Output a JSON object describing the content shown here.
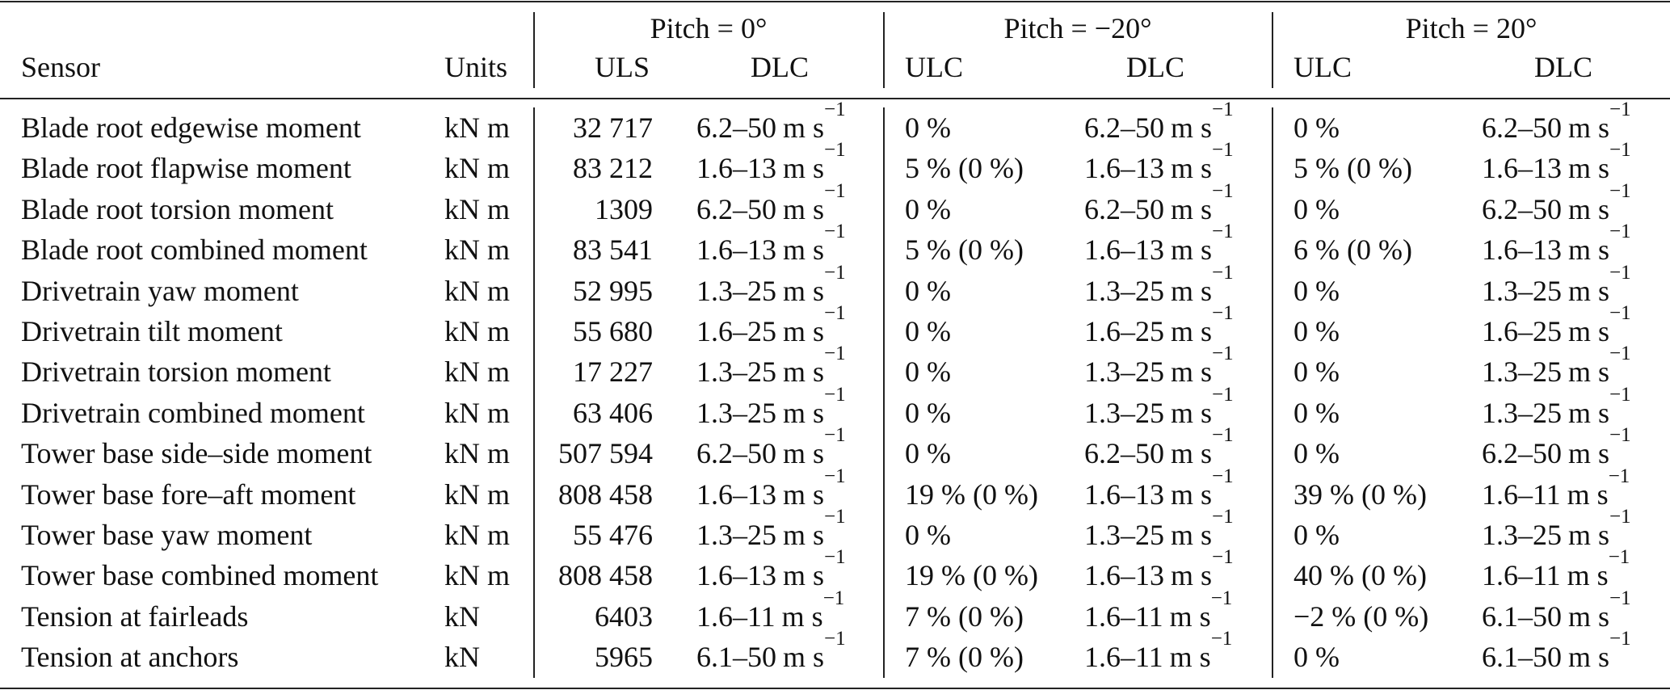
{
  "header": {
    "group_labels": [
      "Pitch = 0°",
      "Pitch = −20°",
      "Pitch = 20°"
    ],
    "columns": [
      "Sensor",
      "Units",
      "ULS",
      "DLC",
      "ULC",
      "DLC",
      "ULC",
      "DLC"
    ]
  },
  "rows": [
    {
      "sensor": "Blade root edgewise moment",
      "units": "kN m",
      "uls": "32 717",
      "dlc0": "6.2–50",
      "ulc_m20": "0 %",
      "dlc_m20": "6.2–50",
      "ulc_p20": "0 %",
      "dlc_p20": "6.2–50"
    },
    {
      "sensor": "Blade root flapwise moment",
      "units": "kN m",
      "uls": "83 212",
      "dlc0": "1.6–13",
      "ulc_m20": "5 % (0 %)",
      "dlc_m20": "1.6–13",
      "ulc_p20": "5 % (0 %)",
      "dlc_p20": "1.6–13"
    },
    {
      "sensor": "Blade root torsion moment",
      "units": "kN m",
      "uls": "1309",
      "dlc0": "6.2–50",
      "ulc_m20": "0 %",
      "dlc_m20": "6.2–50",
      "ulc_p20": "0 %",
      "dlc_p20": "6.2–50"
    },
    {
      "sensor": "Blade root combined moment",
      "units": "kN m",
      "uls": "83 541",
      "dlc0": "1.6–13",
      "ulc_m20": "5 % (0 %)",
      "dlc_m20": "1.6–13",
      "ulc_p20": "6 % (0 %)",
      "dlc_p20": "1.6–13"
    },
    {
      "sensor": "Drivetrain yaw moment",
      "units": "kN m",
      "uls": "52 995",
      "dlc0": "1.3–25",
      "ulc_m20": "0 %",
      "dlc_m20": "1.3–25",
      "ulc_p20": "0 %",
      "dlc_p20": "1.3–25"
    },
    {
      "sensor": "Drivetrain tilt moment",
      "units": "kN m",
      "uls": "55 680",
      "dlc0": "1.6–25",
      "ulc_m20": "0 %",
      "dlc_m20": "1.6–25",
      "ulc_p20": "0 %",
      "dlc_p20": "1.6–25"
    },
    {
      "sensor": "Drivetrain torsion moment",
      "units": "kN m",
      "uls": "17 227",
      "dlc0": "1.3–25",
      "ulc_m20": "0 %",
      "dlc_m20": "1.3–25",
      "ulc_p20": "0 %",
      "dlc_p20": "1.3–25"
    },
    {
      "sensor": "Drivetrain combined moment",
      "units": "kN m",
      "uls": "63 406",
      "dlc0": "1.3–25",
      "ulc_m20": "0 %",
      "dlc_m20": "1.3–25",
      "ulc_p20": "0 %",
      "dlc_p20": "1.3–25"
    },
    {
      "sensor": "Tower base side–side moment",
      "units": "kN m",
      "uls": "507 594",
      "dlc0": "6.2–50",
      "ulc_m20": "0 %",
      "dlc_m20": "6.2–50",
      "ulc_p20": "0 %",
      "dlc_p20": "6.2–50"
    },
    {
      "sensor": "Tower base fore–aft moment",
      "units": "kN m",
      "uls": "808 458",
      "dlc0": "1.6–13",
      "ulc_m20": "19 % (0 %)",
      "dlc_m20": "1.6–13",
      "ulc_p20": "39 % (0 %)",
      "dlc_p20": "1.6–11"
    },
    {
      "sensor": "Tower base yaw moment",
      "units": "kN m",
      "uls": "55 476",
      "dlc0": "1.3–25",
      "ulc_m20": "0 %",
      "dlc_m20": "1.3–25",
      "ulc_p20": "0 %",
      "dlc_p20": "1.3–25"
    },
    {
      "sensor": "Tower base combined moment",
      "units": "kN m",
      "uls": "808 458",
      "dlc0": "1.6–13",
      "ulc_m20": "19 % (0 %)",
      "dlc_m20": "1.6–13",
      "ulc_p20": "40 % (0 %)",
      "dlc_p20": "1.6–11"
    },
    {
      "sensor": "Tension at fairleads",
      "units": "kN",
      "uls": "6403",
      "dlc0": "1.6–11",
      "ulc_m20": "7 % (0 %)",
      "dlc_m20": "1.6–11",
      "ulc_p20": "−2 % (0 %)",
      "dlc_p20": "6.1–50"
    },
    {
      "sensor": "Tension at anchors",
      "units": "kN",
      "uls": "5965",
      "dlc0": "6.1–50",
      "ulc_m20": "7 % (0 %)",
      "dlc_m20": "1.6–11",
      "ulc_p20": "0 %",
      "dlc_p20": "6.1–50"
    }
  ],
  "dlc_unit": "m s",
  "dlc_unit_exponent": "−1"
}
